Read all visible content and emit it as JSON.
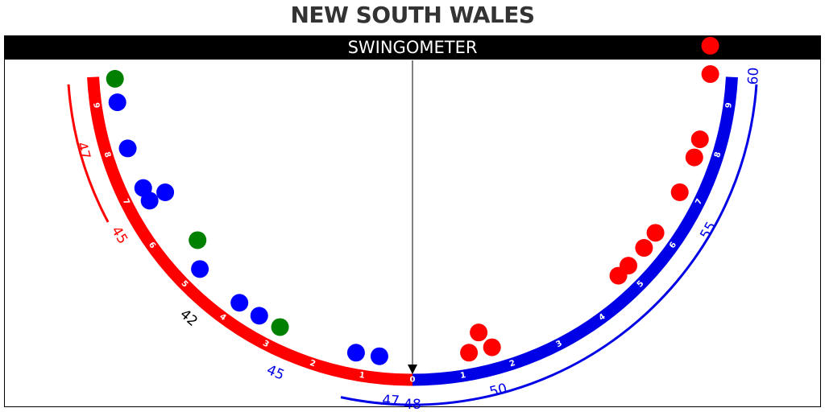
{
  "title": "NEW SOUTH WALES",
  "header": "SWINGOMETER",
  "colors": {
    "left_arc": "#ff0000",
    "right_arc": "#0000e6",
    "red_seat": "#ff0000",
    "blue_seat": "#0000ff",
    "green_seat": "#008000",
    "neutral_label": "#000000"
  },
  "chart_data": {
    "type": "scatter",
    "swing_ticks": {
      "left": [
        "9",
        "8",
        "7",
        "6",
        "5",
        "4",
        "3",
        "2",
        "1"
      ],
      "center": "0",
      "right": [
        "1",
        "2",
        "3",
        "4",
        "5",
        "6",
        "7",
        "8",
        "9"
      ]
    },
    "seat_labels": [
      {
        "text": "47",
        "side": "left",
        "swing": 8.2,
        "color": "red"
      },
      {
        "text": "45",
        "side": "left",
        "swing": 6.5,
        "color": "red"
      },
      {
        "text": "42",
        "side": "left",
        "swing": 4.5,
        "color": "black"
      },
      {
        "text": "45",
        "side": "left",
        "swing": 2.6,
        "color": "blue"
      },
      {
        "text": "47",
        "side": "left",
        "swing": 0.4,
        "color": "blue"
      },
      {
        "text": "48",
        "side": "center",
        "swing": 0,
        "color": "blue"
      },
      {
        "text": "50",
        "side": "right",
        "swing": 1.6,
        "color": "blue"
      },
      {
        "text": "55",
        "side": "right",
        "swing": 6.6,
        "color": "blue"
      },
      {
        "text": "60",
        "side": "right",
        "swing": 9.6,
        "color": "blue"
      }
    ],
    "seats": [
      {
        "side": "left",
        "swing": 9.5,
        "offset": 0,
        "party": "green"
      },
      {
        "side": "left",
        "swing": 9.0,
        "offset": 0,
        "party": "blue"
      },
      {
        "side": "left",
        "swing": 8.0,
        "offset": 0,
        "party": "blue"
      },
      {
        "side": "left",
        "swing": 7.1,
        "offset": 0,
        "party": "blue"
      },
      {
        "side": "left",
        "swing": 6.8,
        "offset": 0,
        "party": "blue"
      },
      {
        "side": "left",
        "swing": 6.8,
        "offset": 1,
        "party": "blue"
      },
      {
        "side": "left",
        "swing": 5.5,
        "offset": 1,
        "party": "green"
      },
      {
        "side": "left",
        "swing": 5.0,
        "offset": 0,
        "party": "blue"
      },
      {
        "side": "left",
        "swing": 3.9,
        "offset": 0,
        "party": "blue"
      },
      {
        "side": "left",
        "swing": 3.4,
        "offset": 0,
        "party": "blue"
      },
      {
        "side": "left",
        "swing": 2.9,
        "offset": 0,
        "party": "green"
      },
      {
        "side": "left",
        "swing": 1.2,
        "offset": 0,
        "party": "blue"
      },
      {
        "side": "left",
        "swing": 0.7,
        "offset": 0,
        "party": "blue"
      },
      {
        "side": "right",
        "swing": 1.2,
        "offset": 0,
        "party": "red"
      },
      {
        "side": "right",
        "swing": 1.5,
        "offset": 1,
        "party": "red"
      },
      {
        "side": "right",
        "swing": 1.7,
        "offset": 0,
        "party": "red"
      },
      {
        "side": "right",
        "swing": 4.8,
        "offset": 0,
        "party": "red"
      },
      {
        "side": "right",
        "swing": 5.1,
        "offset": 0,
        "party": "red"
      },
      {
        "side": "right",
        "swing": 5.6,
        "offset": 0,
        "party": "red"
      },
      {
        "side": "right",
        "swing": 6.0,
        "offset": 0,
        "party": "red"
      },
      {
        "side": "right",
        "swing": 7.0,
        "offset": 0,
        "party": "red"
      },
      {
        "side": "right",
        "swing": 7.8,
        "offset": 0,
        "party": "red"
      },
      {
        "side": "right",
        "swing": 8.2,
        "offset": 0,
        "party": "red"
      },
      {
        "side": "right",
        "swing": 9.6,
        "offset": 0,
        "party": "red"
      },
      {
        "side": "right",
        "swing": 10.2,
        "offset": 0,
        "party": "red"
      }
    ]
  }
}
